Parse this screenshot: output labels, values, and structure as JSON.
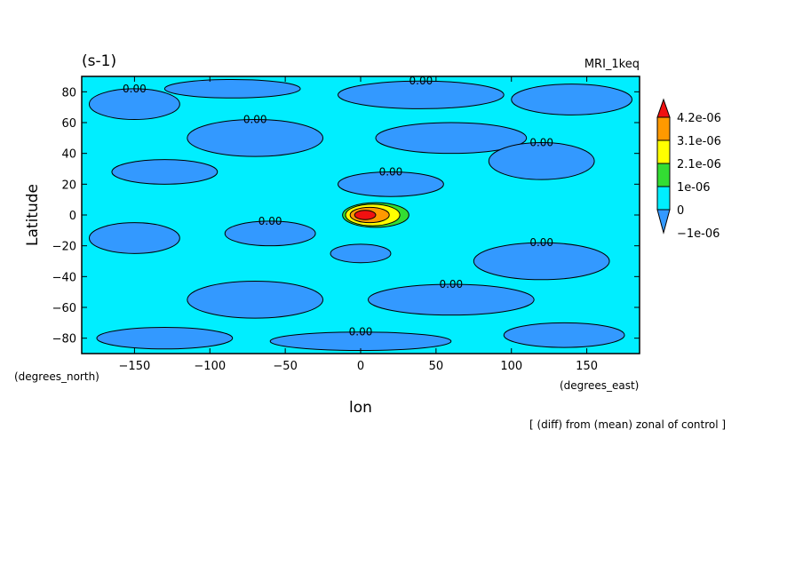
{
  "chart_data": {
    "type": "heatmap",
    "units_label": "(s-1)",
    "model_label": "MRI_1keq",
    "xlabel": "lon",
    "ylabel": "Latitude",
    "x_units": "(degrees_east)",
    "y_units": "(degrees_north)",
    "footnote": "[ (diff) from (mean) zonal of control ]",
    "xlim": [
      -185,
      185
    ],
    "ylim": [
      -90,
      90
    ],
    "x_ticks": [
      -150,
      -100,
      -50,
      0,
      50,
      100,
      150
    ],
    "y_ticks": [
      80,
      60,
      40,
      20,
      0,
      -20,
      -40,
      -60,
      -80
    ],
    "x_tick_labels": [
      "−150",
      "−100",
      "−50",
      "0",
      "50",
      "100",
      "150"
    ],
    "y_tick_labels": [
      "80",
      "60",
      "40",
      "20",
      "0",
      "−20",
      "−40",
      "−60",
      "−80"
    ],
    "colorbar": {
      "levels": [
        "4.2e-06",
        "3.1e-06",
        "2.1e-06",
        "1e-06",
        "0",
        "−1e-06"
      ],
      "colors": [
        "#f01010",
        "#ff9900",
        "#ffff00",
        "#33dd33",
        "#00eeff",
        "#3399ff"
      ]
    },
    "contour_label_text": "0.00",
    "regions": [
      {
        "lon": -150,
        "lat": 72,
        "rx": 30,
        "ry": 10,
        "level": "negative"
      },
      {
        "lon": -85,
        "lat": 82,
        "rx": 45,
        "ry": 6,
        "level": "negative"
      },
      {
        "lon": 40,
        "lat": 78,
        "rx": 55,
        "ry": 9,
        "level": "negative"
      },
      {
        "lon": 140,
        "lat": 75,
        "rx": 40,
        "ry": 10,
        "level": "negative"
      },
      {
        "lon": -70,
        "lat": 50,
        "rx": 45,
        "ry": 12,
        "level": "negative"
      },
      {
        "lon": 60,
        "lat": 50,
        "rx": 50,
        "ry": 10,
        "level": "negative"
      },
      {
        "lon": 120,
        "lat": 35,
        "rx": 35,
        "ry": 12,
        "level": "negative"
      },
      {
        "lon": -130,
        "lat": 28,
        "rx": 35,
        "ry": 8,
        "level": "negative"
      },
      {
        "lon": 20,
        "lat": 20,
        "rx": 35,
        "ry": 8,
        "level": "negative"
      },
      {
        "lon": -150,
        "lat": -15,
        "rx": 30,
        "ry": 10,
        "level": "negative"
      },
      {
        "lon": -60,
        "lat": -12,
        "rx": 30,
        "ry": 8,
        "level": "negative"
      },
      {
        "lon": 0,
        "lat": -25,
        "rx": 20,
        "ry": 6,
        "level": "negative"
      },
      {
        "lon": 120,
        "lat": -30,
        "rx": 45,
        "ry": 12,
        "level": "negative"
      },
      {
        "lon": -70,
        "lat": -55,
        "rx": 45,
        "ry": 12,
        "level": "negative"
      },
      {
        "lon": 60,
        "lat": -55,
        "rx": 55,
        "ry": 10,
        "level": "negative"
      },
      {
        "lon": -130,
        "lat": -80,
        "rx": 45,
        "ry": 7,
        "level": "negative"
      },
      {
        "lon": 0,
        "lat": -82,
        "rx": 60,
        "ry": 6,
        "level": "negative"
      },
      {
        "lon": 135,
        "lat": -78,
        "rx": 40,
        "ry": 8,
        "level": "negative"
      },
      {
        "lon": 10,
        "lat": 0,
        "rx": 22,
        "ry": 8,
        "level": "1e-06"
      },
      {
        "lon": 8,
        "lat": 0,
        "rx": 18,
        "ry": 7,
        "level": "2.1e-06"
      },
      {
        "lon": 6,
        "lat": 0,
        "rx": 13,
        "ry": 5,
        "level": "3.1e-06"
      },
      {
        "lon": 3,
        "lat": 0,
        "rx": 7,
        "ry": 3,
        "level": "4.2e-06"
      }
    ]
  }
}
